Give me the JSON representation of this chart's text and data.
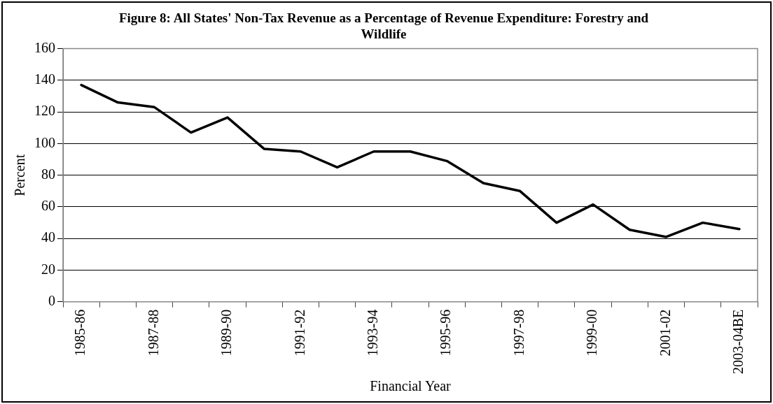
{
  "chart_data": {
    "type": "line",
    "title": "Figure 8: All States' Non-Tax Revenue as a Percentage of Revenue Expenditure: Forestry and Wildlife",
    "xlabel": "Financial Year",
    "ylabel": "Percent",
    "categories": [
      "1985-86",
      null,
      "1987-88",
      null,
      "1989-90",
      null,
      "1991-92",
      null,
      "1993-94",
      null,
      "1995-96",
      null,
      "1997-98",
      null,
      "1999-00",
      null,
      "2001-02",
      null,
      "2003-04BE"
    ],
    "series": [
      {
        "color": "#000000",
        "values": [
          137,
          126,
          123,
          107,
          116.5,
          96.7,
          95,
          85,
          95,
          95,
          89,
          75,
          70,
          50,
          61.5,
          45.5,
          41,
          50,
          46
        ]
      }
    ],
    "ylim": [
      0,
      160
    ],
    "yticks": [
      0,
      20,
      40,
      60,
      80,
      100,
      120,
      140,
      160
    ],
    "grid": "y",
    "legend": false,
    "marker": "none",
    "line_style": "solid"
  }
}
